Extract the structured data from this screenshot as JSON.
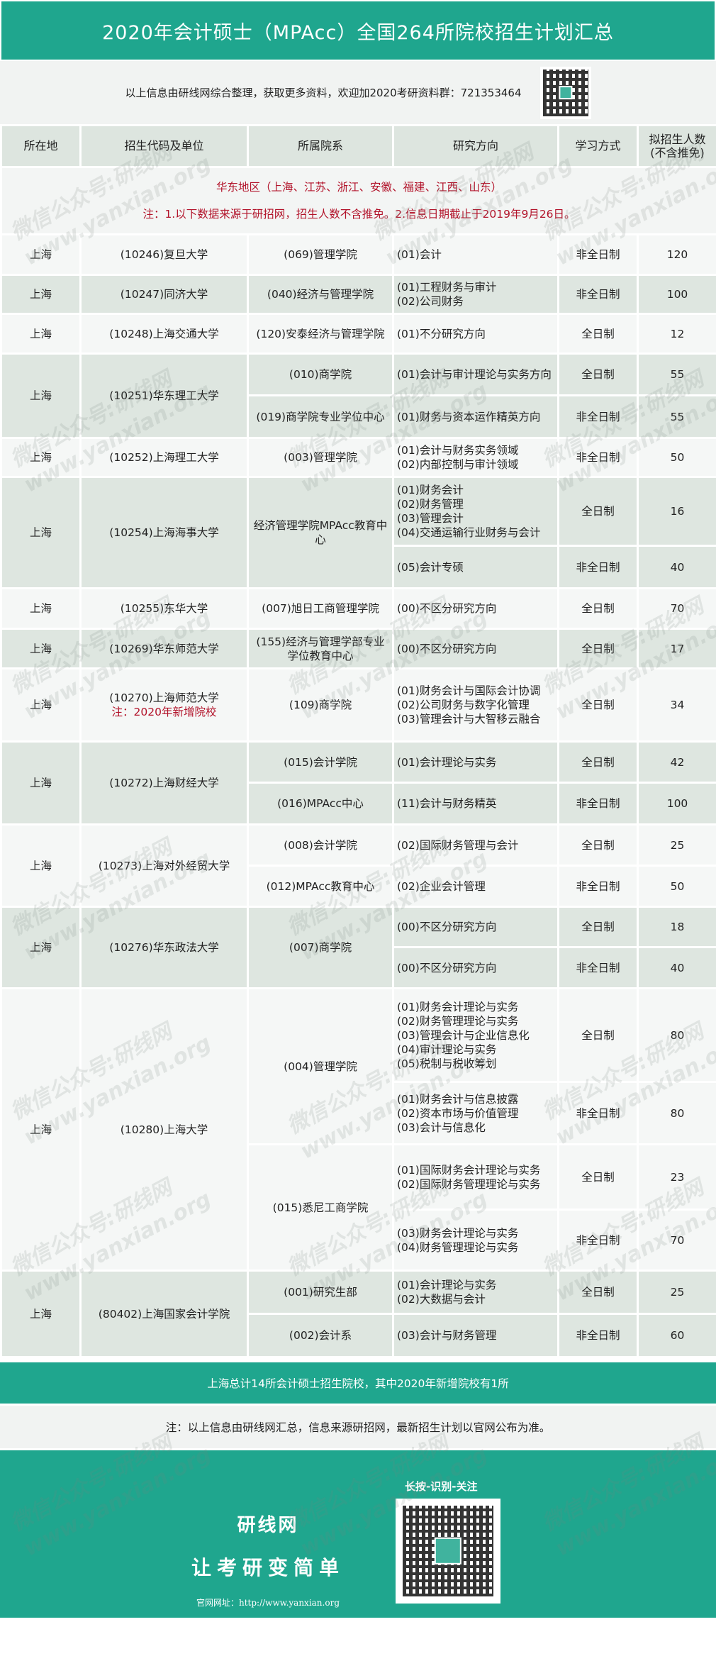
{
  "title": "2020年会计硕士（MPAcc）全国264所院校招生计划汇总",
  "info_text": "以上信息由研线网综合整理，获取更多资料，欢迎加2020考研资料群：721353464",
  "headers": [
    "所在地",
    "招生代码及单位",
    "所属院系",
    "研究方向",
    "学习方式",
    "拟招生人数\n(不含推免)"
  ],
  "region": {
    "name": "华东地区（上海、江苏、浙江、安徽、福建、江西、山东）",
    "note": "注：1.以下数据来源于研招网，招生人数不含推免。2.信息日期截止于2019年9月26日。"
  },
  "schools": [
    {
      "loc": "上海",
      "unit": "(10246)复旦大学",
      "depts": [
        {
          "name": "(069)管理学院",
          "rows": [
            {
              "dir": "(01)会计",
              "mode": "非全日制",
              "num": "120"
            }
          ]
        }
      ]
    },
    {
      "loc": "上海",
      "unit": "(10247)同济大学",
      "depts": [
        {
          "name": "(040)经济与管理学院",
          "rows": [
            {
              "dir": "(01)工程财务与审计\n(02)公司财务",
              "mode": "非全日制",
              "num": "100"
            }
          ]
        }
      ]
    },
    {
      "loc": "上海",
      "unit": "(10248)上海交通大学",
      "depts": [
        {
          "name": "(120)安泰经济与管理学院",
          "rows": [
            {
              "dir": "(01)不分研究方向",
              "mode": "全日制",
              "num": "12"
            }
          ]
        }
      ]
    },
    {
      "loc": "上海",
      "unit": "(10251)华东理工大学",
      "depts": [
        {
          "name": "(010)商学院",
          "rows": [
            {
              "dir": "(01)会计与审计理论与实务方向",
              "mode": "全日制",
              "num": "55"
            }
          ]
        },
        {
          "name": "(019)商学院专业学位中心",
          "rows": [
            {
              "dir": "(01)财务与资本运作精英方向",
              "mode": "非全日制",
              "num": "55"
            }
          ]
        }
      ]
    },
    {
      "loc": "上海",
      "unit": "(10252)上海理工大学",
      "depts": [
        {
          "name": "(003)管理学院",
          "rows": [
            {
              "dir": "(01)会计与财务实务领域\n(02)内部控制与审计领域",
              "mode": "非全日制",
              "num": "50"
            }
          ]
        }
      ]
    },
    {
      "loc": "上海",
      "unit": "(10254)上海海事大学",
      "depts": [
        {
          "name": "经济管理学院MPAcc教育中心",
          "rows": [
            {
              "dir": "(01)财务会计\n(02)财务管理\n(03)管理会计\n(04)交通运输行业财务与会计",
              "mode": "全日制",
              "num": "16"
            },
            {
              "dir": "(05)会计专硕",
              "mode": "非全日制",
              "num": "40"
            }
          ]
        }
      ]
    },
    {
      "loc": "上海",
      "unit": "(10255)东华大学",
      "depts": [
        {
          "name": "(007)旭日工商管理学院",
          "rows": [
            {
              "dir": "(00)不区分研究方向",
              "mode": "全日制",
              "num": "70"
            }
          ]
        }
      ]
    },
    {
      "loc": "上海",
      "unit": "(10269)华东师范大学",
      "depts": [
        {
          "name": "(155)经济与管理学部专业学位教育中心",
          "rows": [
            {
              "dir": "(00)不区分研究方向",
              "mode": "全日制",
              "num": "17"
            }
          ]
        }
      ]
    },
    {
      "loc": "上海",
      "unit": "(10270)上海师范大学",
      "unit_note": "注：2020年新增院校",
      "depts": [
        {
          "name": "(109)商学院",
          "rows": [
            {
              "dir": "(01)财务会计与国际会计协调\n(02)公司财务与数字化管理\n(03)管理会计与大智移云融合",
              "mode": "全日制",
              "num": "34"
            }
          ]
        }
      ]
    },
    {
      "loc": "上海",
      "unit": "(10272)上海财经大学",
      "depts": [
        {
          "name": "(015)会计学院",
          "rows": [
            {
              "dir": "(01)会计理论与实务",
              "mode": "全日制",
              "num": "42"
            }
          ]
        },
        {
          "name": "(016)MPAcc中心",
          "rows": [
            {
              "dir": "(11)会计与财务精英",
              "mode": "非全日制",
              "num": "100"
            }
          ]
        }
      ]
    },
    {
      "loc": "上海",
      "unit": "(10273)上海对外经贸大学",
      "depts": [
        {
          "name": "(008)会计学院",
          "rows": [
            {
              "dir": "(02)国际财务管理与会计",
              "mode": "全日制",
              "num": "25"
            }
          ]
        },
        {
          "name": "(012)MPAcc教育中心",
          "rows": [
            {
              "dir": "(02)企业会计管理",
              "mode": "非全日制",
              "num": "50"
            }
          ]
        }
      ]
    },
    {
      "loc": "上海",
      "unit": "(10276)华东政法大学",
      "depts": [
        {
          "name": "(007)商学院",
          "rows": [
            {
              "dir": "(00)不区分研究方向",
              "mode": "全日制",
              "num": "18"
            },
            {
              "dir": "(00)不区分研究方向",
              "mode": "非全日制",
              "num": "40"
            }
          ]
        }
      ]
    },
    {
      "loc": "上海",
      "unit": "(10280)上海大学",
      "depts": [
        {
          "name": "(004)管理学院",
          "rows": [
            {
              "dir": "(01)财务会计理论与实务\n(02)财务管理理论与实务\n(03)管理会计与企业信息化\n(04)审计理论与实务\n(05)税制与税收筹划",
              "mode": "全日制",
              "num": "80"
            },
            {
              "dir": "(01)财务会计与信息披露\n(02)资本市场与价值管理\n(03)会计与信息化",
              "mode": "非全日制",
              "num": "80"
            }
          ]
        },
        {
          "name": "(015)悉尼工商学院",
          "rows": [
            {
              "dir": "(01)国际财务会计理论与实务\n(02)国际财务管理理论与实务",
              "mode": "全日制",
              "num": "23"
            },
            {
              "dir": "(03)财务会计理论与实务\n(04)财务管理理论与实务",
              "mode": "非全日制",
              "num": "70"
            }
          ]
        }
      ]
    },
    {
      "loc": "上海",
      "unit": "(80402)上海国家会计学院",
      "depts": [
        {
          "name": "(001)研究生部",
          "rows": [
            {
              "dir": "(01)会计理论与实务\n(02)大数据与会计",
              "mode": "全日制",
              "num": "25"
            }
          ]
        },
        {
          "name": "(002)会计系",
          "rows": [
            {
              "dir": "(03)会计与财务管理",
              "mode": "非全日制",
              "num": "60"
            }
          ]
        }
      ]
    }
  ],
  "summary": "上海总计14所会计硕士招生院校，其中2020年新增院校有1所",
  "note": "注：以上信息由研线网汇总，信息来源研招网，最新招生计划以官网公布为准。",
  "footer": {
    "brand": "研线网",
    "slogan": "让考研变简单",
    "url": "官网网址：http://www.yanxian.org",
    "scan_hint": "长按-识别-关注"
  },
  "watermark": "微信公众号:研线网\nwww.yanxian.org",
  "colors": {
    "brand_green": "#1fa68e",
    "alert_red": "#b2132a",
    "row_dark": "#dee6e0",
    "row_light": "#f5f7f6"
  }
}
